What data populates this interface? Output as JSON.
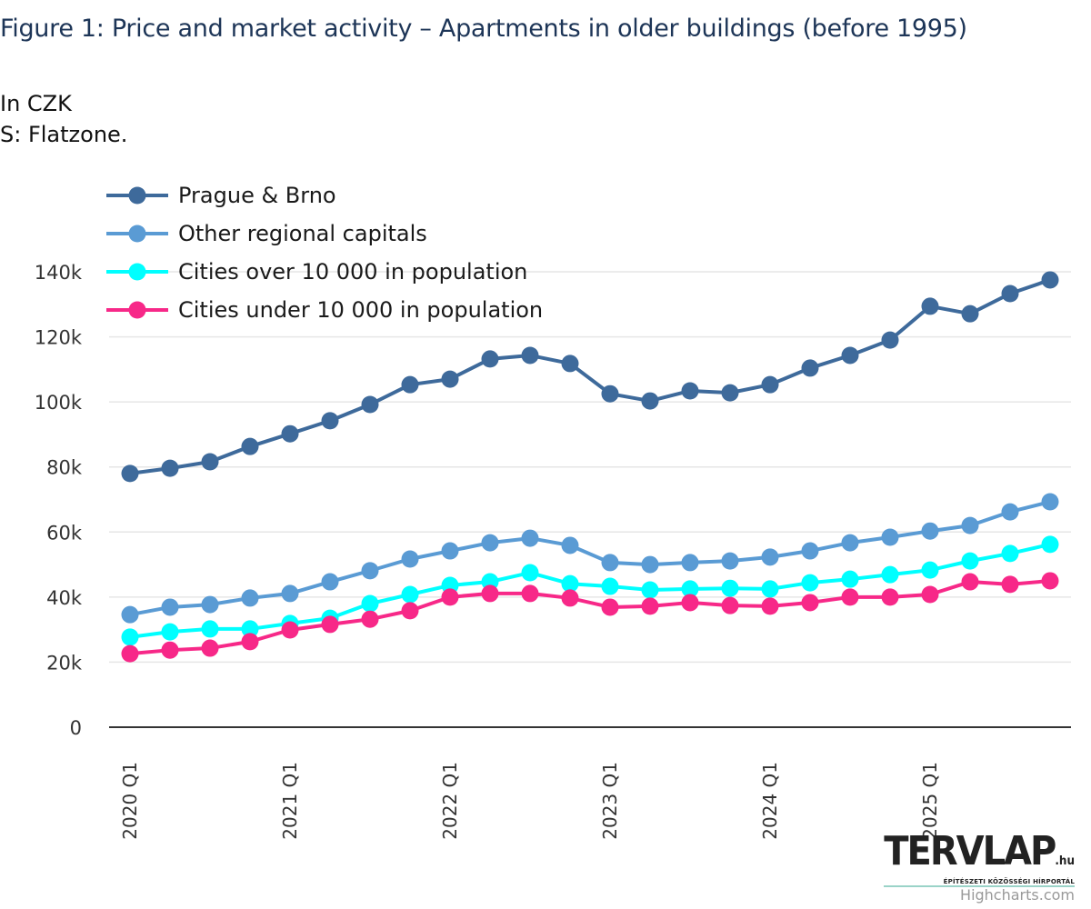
{
  "header": {
    "title": "Figure 1: Price and market activity – Apartments in older buildings (before 1995)",
    "subtitle": "In CZK",
    "source": "S: Flatzone."
  },
  "watermark": {
    "logo": "TERVLAP",
    "logo_suffix": ".hu",
    "tagline": "ÉPÍTÉSZETI KÖZÖSSÉGI HÍRPORTÁL",
    "credit": "Highcharts.com"
  },
  "chart_data": {
    "type": "line",
    "title": "Figure 1: Price and market activity – Apartments in older buildings (before 1995)",
    "subtitle": "In CZK",
    "xlabel": "",
    "ylabel": "",
    "ylim": [
      0,
      140000
    ],
    "yticks": [
      0,
      20000,
      40000,
      60000,
      80000,
      100000,
      120000,
      140000
    ],
    "ytick_labels": [
      "0",
      "20k",
      "40k",
      "60k",
      "80k",
      "100k",
      "120k",
      "140k"
    ],
    "grid": true,
    "legend_position": "top-left",
    "categories": [
      "2020 Q1",
      "2020 Q2",
      "2020 Q3",
      "2020 Q4",
      "2021 Q1",
      "2021 Q2",
      "2021 Q3",
      "2021 Q4",
      "2022 Q1",
      "2022 Q2",
      "2022 Q3",
      "2022 Q4",
      "2023 Q1",
      "2023 Q2",
      "2023 Q3",
      "2023 Q4",
      "2024 Q1",
      "2024 Q2",
      "2024 Q3",
      "2024 Q4",
      "2025 Q1",
      "2025 Q2",
      "2025 Q3",
      "2025 Q4"
    ],
    "xtick_labels": [
      "2020 Q1",
      "2021 Q1",
      "2022 Q1",
      "2023 Q1",
      "2024 Q1",
      "2025 Q1"
    ],
    "series": [
      {
        "name": "Prague & Brno",
        "color": "#3e6a9b",
        "values": [
          78000,
          79600,
          81600,
          86300,
          90200,
          94200,
          99200,
          105300,
          107000,
          113200,
          114300,
          111800,
          102500,
          100300,
          103400,
          102800,
          105300,
          110400,
          114300,
          119000,
          129400,
          127100,
          133300,
          137500
        ]
      },
      {
        "name": "Other regional capitals",
        "color": "#5a9bd4",
        "values": [
          34600,
          36900,
          37700,
          39700,
          41100,
          44700,
          48100,
          51700,
          54200,
          56700,
          58100,
          55900,
          50600,
          50000,
          50600,
          51100,
          52300,
          54200,
          56700,
          58400,
          60300,
          62000,
          66200,
          69300
        ]
      },
      {
        "name": "Cities over 10 000 in population",
        "color": "#00ffff",
        "values": [
          27700,
          29300,
          30200,
          30200,
          31900,
          33500,
          38000,
          40800,
          43600,
          44700,
          47500,
          44100,
          43300,
          42200,
          42500,
          42700,
          42500,
          44400,
          45500,
          46900,
          48300,
          51100,
          53400,
          56200
        ]
      },
      {
        "name": "Cities under 10 000 in population",
        "color": "#f72888",
        "values": [
          22600,
          23700,
          24300,
          26300,
          29900,
          31600,
          33200,
          35800,
          40000,
          41100,
          41100,
          39700,
          36900,
          37200,
          38300,
          37400,
          37200,
          38300,
          40000,
          40000,
          40800,
          44700,
          43900,
          45000
        ]
      }
    ]
  }
}
